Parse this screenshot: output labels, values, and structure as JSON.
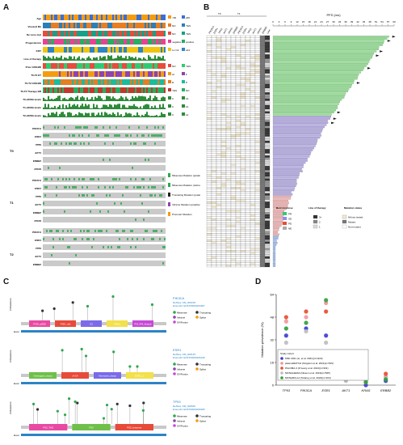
{
  "panels": {
    "a": "A",
    "b": "B",
    "c": "C",
    "d": "D"
  },
  "panelA": {
    "clinical_rows": [
      "Age",
      "Visceral Mx",
      "De novo met",
      "Progesterone",
      "Ki67",
      "Line of therapy",
      "Prior CDK4/6I",
      "T0-T2 ET",
      "T0-T2 CDK4/6I",
      "T0-T2 Therapy BR",
      "T0-ctDNA levels",
      "T1-ctDNA levels",
      "T2-ctDNA levels"
    ],
    "legend": [
      [
        "<65",
        "≥65"
      ],
      [
        "NO",
        "YES"
      ],
      [
        "NO",
        "YES"
      ],
      [
        "negative",
        "positive"
      ],
      [
        "Lo<14",
        "≥14"
      ],
      [
        "",
        ""
      ],
      [
        "NO",
        "YES"
      ],
      [
        "AI",
        "F"
      ],
      [
        "R",
        "P"
      ],
      [
        "YES",
        "NO"
      ],
      [
        "0",
        "12"
      ],
      [
        "0",
        "12"
      ],
      [
        "0",
        "12"
      ]
    ],
    "gene_groups": [
      {
        "label": "T0",
        "genes": [
          "PIK3CA",
          "ESR1",
          "TP53",
          "AKT1",
          "ERBB2",
          "KRAS"
        ]
      },
      {
        "label": "T1",
        "genes": [
          "PIK3CA",
          "ESR1",
          "TP53",
          "AKT1",
          "ERBB2",
          "KRAS"
        ]
      },
      {
        "label": "T2",
        "genes": [
          "PIK3CA",
          "ESR1",
          "TP53",
          "AKT1",
          "ERBB2",
          "KRAS"
        ]
      }
    ],
    "mutation_legend": [
      "Missense Mutation (putative driver)",
      "Missense Mutation (unknown significance)",
      "Truncating Mutation (putative driver)",
      "Inframe Mutation (putative driver)",
      "Promoter Mutation"
    ]
  },
  "panelB": {
    "headers_top": [
      "T0",
      "T1",
      "T2"
    ],
    "col_labels": [
      "PIK3CA",
      "ESR1",
      "TP53",
      "AKT1",
      "KRAS",
      "ERBB2",
      "PIK3CA",
      "ESR1",
      "TP53",
      "AKT1",
      "KRAS",
      "ERBB2",
      "Line"
    ],
    "pfs_title": "PFS (mo)",
    "pfs_ticks": [
      "0",
      "3",
      "6",
      "9",
      "12",
      "15",
      "18",
      "21",
      "24",
      "27",
      "30",
      "33",
      "36",
      "39",
      "42",
      "45",
      "48",
      "51",
      "54",
      "57",
      "60"
    ],
    "legend_best_response_title": "Best response",
    "legend_best_response": [
      "PR",
      "SD",
      "PD",
      "NE"
    ],
    "legend_line_title": "Line of therapy",
    "legend_line": [
      "3+",
      "2",
      "1"
    ],
    "legend_mut_title": "Mutation status",
    "legend_mut": [
      "NAmut tested",
      "Mutant",
      "Non-mutant"
    ]
  },
  "panelC": {
    "proteins": [
      {
        "name": "PIK3CA",
        "refseq": "RefSeq: NM_006218",
        "ensembl": "Ensembl: ENST00000263967",
        "domains": [
          "PI3K_p85B",
          "PI3K_rbd",
          "C2",
          "PI3Ka",
          "PI3_PI4_kinase"
        ]
      },
      {
        "name": "ESR1",
        "refseq": "RefSeq: NM_000125",
        "ensembl": "Ensembl: ENST00000206249",
        "domains": [
          "Oestrogen_recep",
          "zf-C4",
          "Hormone_recep",
          "ESR1_C"
        ]
      },
      {
        "name": "TP53",
        "refseq": "RefSeq: NM_000546",
        "ensembl": "Ensembl: ENST00000269305",
        "domains": [
          "P53_TAD",
          "P53",
          "P53_tetramer"
        ]
      }
    ],
    "mut_legend": [
      "Missense",
      "Truncating",
      "Inframe",
      "Splice",
      "SV/Fusion"
    ]
  },
  "chart_data": {
    "type": "scatter",
    "ylabel": "Mutation prevalence (%)",
    "categories": [
      "TP53",
      "PIK3CA",
      "ESR1",
      "AKT1",
      "KRAS",
      "ERBB2"
    ],
    "yticks": [
      0,
      16,
      32,
      48,
      64
    ],
    "ylim": [
      0,
      64
    ],
    "legend_title": "Study cohort",
    "series": [
      {
        "name": "MSK 2021 (Li, et al. 2021)(n=1116)",
        "color": "#3a3ad6",
        "values": [
          35,
          40,
          35,
          4,
          0,
          3
        ]
      },
      {
        "name": "plasmaMATCH (Kingston et al. 2021)(n=515)",
        "color": "#f2949c",
        "values": [
          45,
          48,
          58,
          6,
          3,
          6
        ]
      },
      {
        "name": "PALOMA-3 (O'Leary et al. 2021)(n=331)",
        "color": "#e84a2a",
        "values": [
          48,
          52,
          52,
          8,
          5,
          8
        ]
      },
      {
        "name": "MONALEESA (Nissen et al. 2019)(n=565)",
        "color": "#bdbdbd",
        "values": [
          30,
          38,
          30,
          3,
          2,
          5
        ]
      },
      {
        "name": "MONARCH-2 (Tolaney et al. 2022)(n=104)",
        "color": "#2c9f3a",
        "values": [
          40,
          44,
          60,
          5,
          2,
          4
        ]
      }
    ]
  }
}
